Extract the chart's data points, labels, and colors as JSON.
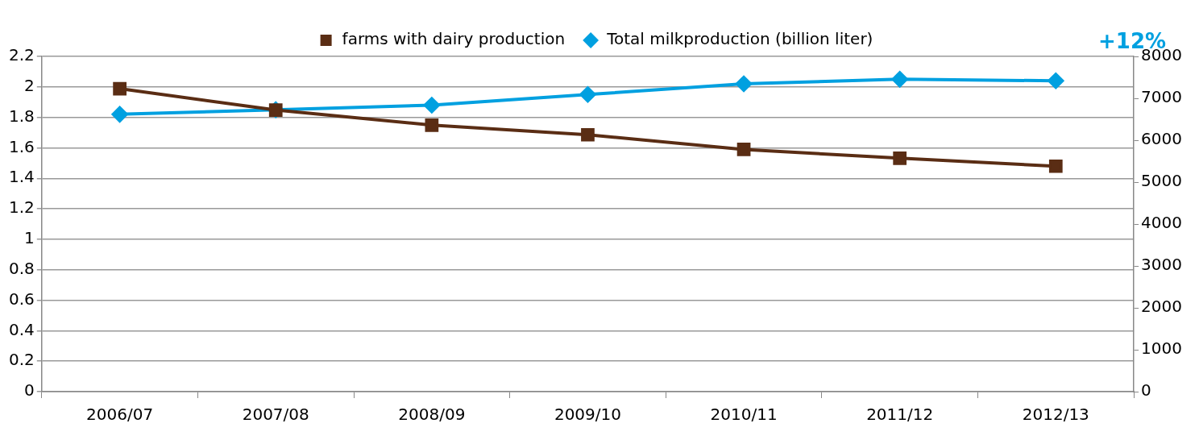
{
  "chart_data": {
    "type": "line",
    "categories": [
      "2006/07",
      "2007/08",
      "2008/09",
      "2009/10",
      "2010/11",
      "2011/12",
      "2012/13"
    ],
    "series": [
      {
        "name": "Total milkproduction (billion liter)",
        "color": "#00a0e0",
        "marker": "diamond",
        "values": [
          1.82,
          1.85,
          1.88,
          1.95,
          2.02,
          2.05,
          2.04
        ]
      },
      {
        "name": "farms with dairy production",
        "color": "#5a2d14",
        "marker": "square",
        "axis": "y2",
        "values": [
          7230,
          6720,
          6360,
          6130,
          5780,
          5570,
          5380
        ]
      }
    ],
    "ylim": [
      0,
      2.2
    ],
    "yticks": [
      0,
      0.2,
      0.4,
      0.6,
      0.8,
      1,
      1.2,
      1.4,
      1.6,
      1.8,
      2,
      2.2
    ],
    "y2lim": [
      0,
      8000
    ],
    "y2ticks": [
      0,
      1000,
      2000,
      3000,
      4000,
      5000,
      6000,
      7000,
      8000
    ],
    "grid": "y",
    "legend": "top",
    "annotations": [
      "+12%"
    ]
  }
}
